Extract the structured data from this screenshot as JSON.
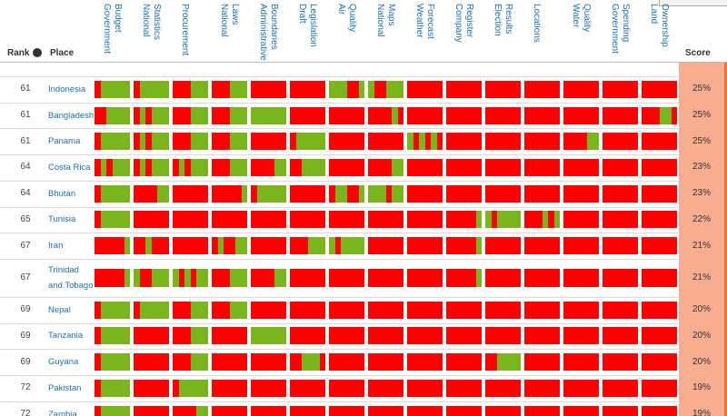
{
  "header": {
    "rank": "Rank",
    "place": "Place",
    "score": "Score",
    "datasets": [
      [
        "Government",
        "Budget"
      ],
      [
        "National",
        "Statistics"
      ],
      [
        "Procurement"
      ],
      [
        "National",
        "Laws"
      ],
      [
        "Administrative",
        "Boundaries"
      ],
      [
        "Draft",
        "Legislation"
      ],
      [
        "Air",
        "Quality"
      ],
      [
        "National",
        "Maps"
      ],
      [
        "Weather",
        "Forecast"
      ],
      [
        "Company",
        "Register"
      ],
      [
        "Election",
        "Results"
      ],
      [
        "Locations"
      ],
      [
        "Water",
        "Quality"
      ],
      [
        "Government",
        "Spending"
      ],
      [
        "Land",
        "Ownership"
      ]
    ]
  },
  "table": {
    "colors": {
      "r": "#ff0000",
      "g": "#7ab51d"
    },
    "rows": [
      {
        "rank": "61",
        "place": "Indonesia",
        "score": "25%",
        "cells": [
          "rggggg",
          "rggggg",
          "rrrggg",
          "rrrggg",
          "rrrrrr",
          "rrrrrr",
          "gggrrg",
          "grrggg",
          "rrrrrr",
          "rrrrrr",
          "rrrrrr",
          "rrrrrr",
          "rrrrrr",
          "rrrrrr",
          "rrrrrr"
        ]
      },
      {
        "rank": "61",
        "place": "Bangladesh",
        "score": "25%",
        "cells": [
          "rrgggg",
          "rgrggg",
          "rrrggg",
          "rrrggg",
          "gggggg",
          "rrrrrr",
          "rrrrrr",
          "rrrrgr",
          "rrrrrr",
          "rrrrrr",
          "rrrrrr",
          "rrrrrr",
          "rrrrrr",
          "rrrrrr",
          "rrrggr"
        ]
      },
      {
        "rank": "61",
        "place": "Panama",
        "score": "25%",
        "cells": [
          "rggggg",
          "rgrggg",
          "rrrggg",
          "rrrggg",
          "rrrrrr",
          "rggggg",
          "rrrrrr",
          "rrrrrr",
          "grgrgr",
          "rrrrrr",
          "rrrrrr",
          "rrrrrr",
          "rrrrgg",
          "rrrrrr",
          "rrrrrr"
        ]
      },
      {
        "rank": "64",
        "place": "Costa Rica",
        "score": "23%",
        "cells": [
          "rgrggg",
          "rgrggg",
          "rgrggg",
          "rrrggg",
          "rrrrgg",
          "rrgggg",
          "rrrrrr",
          "rrrrgg",
          "rrrrrr",
          "rrrrrr",
          "rrrrrr",
          "rrrrrr",
          "rrrrrr",
          "rrrrrr",
          "rrrrrr"
        ]
      },
      {
        "rank": "64",
        "place": "Bhutan",
        "score": "23%",
        "cells": [
          "rggggg",
          "rrrrgg",
          "rrrrrr",
          "rrrrrg",
          "rggggg",
          "rrrrrr",
          "rggrrg",
          "gggrgg",
          "rrrrrr",
          "rrrrrr",
          "rrrrrr",
          "rrrrrr",
          "rrrrrr",
          "rrrrrr",
          "rrrrrr"
        ]
      },
      {
        "rank": "65",
        "place": "Tunisia",
        "score": "22%",
        "cells": [
          "rggggg",
          "rrrrrr",
          "rrrrrr",
          "rrrrrr",
          "rrrrrr",
          "rrrrrr",
          "rrrrrr",
          "rrrrrr",
          "rrrrrr",
          "rrrrrg",
          "grgggg",
          "rrrgrg",
          "rrrrrr",
          "rrrrrr",
          "rrrrrr"
        ]
      },
      {
        "rank": "67",
        "place": "Iran",
        "score": "21%",
        "cells": [
          "rrrrrg",
          "rrgrrr",
          "rrrrrr",
          "rgrrgg",
          "rrrrrr",
          "rrrggg",
          "grgggg",
          "rrrrrr",
          "rrrrrr",
          "rrrrrg",
          "rrrrrr",
          "rrrrrr",
          "rrrrrr",
          "rrrrrr",
          "rrrrrr"
        ]
      },
      {
        "rank": "67",
        "place": "Trinidad and Tobago",
        "score": "21%",
        "cells": [
          "rrrrrg",
          "grrggg",
          "grgrgg",
          "rrrggg",
          "rrrrgg",
          "rrrrrr",
          "rrrrrr",
          "rrrrrr",
          "rrrrrr",
          "rrrrrg",
          "rrrrrr",
          "rrrrrr",
          "rrrrrr",
          "rrrrrr",
          "rrrrrr"
        ]
      },
      {
        "rank": "69",
        "place": "Nepal",
        "score": "20%",
        "cells": [
          "rggggg",
          "rggggg",
          "rrrggg",
          "rrrggg",
          "rrrrrr",
          "rrrrrr",
          "rrrrrr",
          "rrrrrr",
          "rrrrrr",
          "rrrrrr",
          "rrrrrr",
          "rrrrrr",
          "rrrrrr",
          "rrrrrr",
          "rrrrrr"
        ]
      },
      {
        "rank": "69",
        "place": "Tanzania",
        "score": "20%",
        "cells": [
          "rggggg",
          "rrrrrr",
          "rrrggg",
          "rrrrrr",
          "gggggg",
          "rrrrrr",
          "rrrrrr",
          "rrrrrr",
          "rrrrrr",
          "rrrrrr",
          "rrrrrr",
          "rrrrrr",
          "rrrrrr",
          "rrrrrr",
          "rrrrrr"
        ]
      },
      {
        "rank": "69",
        "place": "Guyana",
        "score": "20%",
        "cells": [
          "rggggg",
          "rrrrrr",
          "rrrggg",
          "rrrrrr",
          "rrrrrr",
          "rrgggr",
          "rrrrrr",
          "rrrrrr",
          "rrrrrr",
          "rrrrrr",
          "rrgggg",
          "rrrrrr",
          "rrrrrr",
          "rrrrrr",
          "rrrrrr"
        ]
      },
      {
        "rank": "72",
        "place": "Pakistan",
        "score": "19%",
        "cells": [
          "rggggg",
          "rrrrrr",
          "rggggg",
          "rrrrrr",
          "rrrrrr",
          "rrrrrr",
          "rrrrrr",
          "rrrrrr",
          "rrrrrr",
          "rrrrrr",
          "rrrrrr",
          "rrrrrr",
          "rrrrrr",
          "rrrrrr",
          "rrrrrr"
        ]
      },
      {
        "rank": "72",
        "place": "Zambia",
        "score": "19%",
        "cells": [
          "rggggg",
          "rrrrrr",
          "rrrrgg",
          "rrrrrr",
          "rrrrrr",
          "rrrrrr",
          "rrrrrr",
          "rrrrrr",
          "rrrrrr",
          "rrrrrr",
          "rrrrrr",
          "rrrrrr",
          "rrrrrr",
          "rrrrrr",
          "rrrrrr"
        ]
      }
    ]
  }
}
